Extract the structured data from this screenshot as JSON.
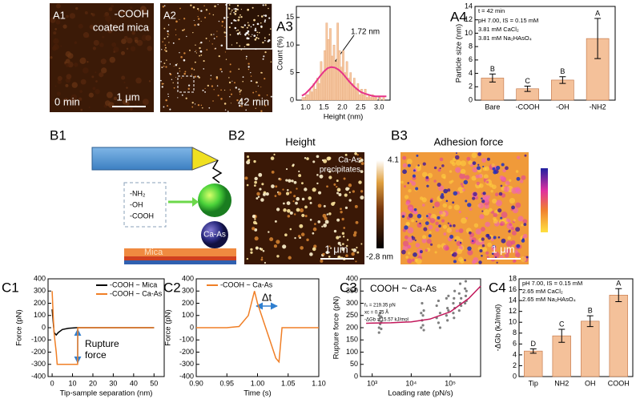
{
  "images": [
    {
      "panel": "A1",
      "texts": [
        "-COOH",
        "coated mica",
        "0 min",
        "1 μm"
      ]
    },
    {
      "panel": "A2",
      "texts": [
        "42 min"
      ]
    },
    {
      "panel": "B1",
      "texts": [
        "-NH₂",
        "-OH",
        "-COOH",
        "Ca-As",
        "Mica"
      ]
    },
    {
      "panel": "B2",
      "title": "Height",
      "texts": [
        "Ca-As",
        "precipitates",
        "1 μm"
      ],
      "colorbar": [
        "4.1 nm",
        "-2.8 nm"
      ]
    },
    {
      "panel": "B3",
      "title": "Adhesion force",
      "texts": [
        "1 μm"
      ]
    }
  ],
  "chart_data": [
    {
      "type": "histogram",
      "panel": "A3",
      "xlabel": "Height (nm)",
      "ylabel": "Count (%)",
      "color": "#f7c8a2",
      "bins": [
        0.9,
        0.95,
        1.0,
        1.05,
        1.1,
        1.15,
        1.2,
        1.25,
        1.3,
        1.35,
        1.4,
        1.45,
        1.5,
        1.55,
        1.6,
        1.65,
        1.7,
        1.75,
        1.8,
        1.85,
        1.9,
        1.95,
        2.0,
        2.05,
        2.1,
        2.15,
        2.2,
        2.25,
        2.3,
        2.35,
        2.4,
        2.45,
        2.5,
        2.55,
        2.6,
        2.65,
        2.7,
        2.75,
        2.8,
        2.85,
        2.9,
        2.95,
        3.0,
        3.05,
        3.1,
        3.15,
        3.2
      ],
      "values": [
        0.5,
        0.5,
        1,
        1,
        2,
        1.5,
        3,
        2,
        4,
        3,
        7,
        5,
        9,
        14,
        11,
        13,
        8,
        10,
        7,
        14,
        9,
        6,
        9,
        5,
        7,
        4,
        5,
        3,
        4,
        2,
        3,
        1,
        2,
        1,
        2,
        0.5,
        1,
        0.5,
        1,
        0.5,
        0.5,
        0,
        0.5,
        0,
        0.5,
        0
      ],
      "fit": {
        "color": "#e6338a",
        "x": [
          0.9,
          1.0,
          1.1,
          1.2,
          1.3,
          1.4,
          1.5,
          1.6,
          1.7,
          1.8,
          1.9,
          2.0,
          2.1,
          2.2,
          2.3,
          2.4,
          2.5,
          2.6,
          2.7,
          2.8,
          2.9,
          3.0,
          3.1,
          3.2
        ],
        "values": [
          0.8,
          1.2,
          1.9,
          2.6,
          3.5,
          4.4,
          5.2,
          5.8,
          6.0,
          5.9,
          5.5,
          4.9,
          4.1,
          3.3,
          2.6,
          2.0,
          1.5,
          1.2,
          1.0,
          0.8,
          0.7,
          0.7,
          0.7,
          0.7
        ]
      },
      "annotations": [
        "1.72 nm"
      ],
      "xlim": [
        0.75,
        3.3
      ],
      "xticks": [
        {
          "value": 1,
          "label": "1.0"
        },
        1.5,
        {
          "value": 2,
          "label": "2.0"
        },
        2.5,
        {
          "value": 3,
          "label": "3.0"
        }
      ],
      "ylim": [
        0,
        17
      ],
      "yticks": [
        0,
        5,
        10,
        15
      ]
    },
    {
      "type": "bar",
      "panel": "A4",
      "ylabel": "Particle size (nm)",
      "color": "#f4c19a",
      "categories": [
        "Bare",
        "-COOH",
        "-OH",
        "-NH2"
      ],
      "values": [
        3.3,
        1.7,
        3.0,
        9.2
      ],
      "errors": [
        0.6,
        0.4,
        0.5,
        3.0
      ],
      "group_labels": [
        "B",
        "C",
        "B",
        "A"
      ],
      "annotations": [
        "t = 42 min",
        "pH 7.00, IS = 0.15 mM",
        "3.81 mM CaCl₂",
        "3.81 mM Na₂HAsO₄"
      ],
      "ylim": [
        0,
        14
      ],
      "yticks": [
        0,
        2,
        4,
        6,
        8,
        10,
        12,
        14
      ]
    },
    {
      "type": "line",
      "panel": "C1",
      "xlabel": "Tip-sample separation (nm)",
      "ylabel": "Force (pN)",
      "series": [
        {
          "name": "-COOH ~ Mica",
          "color": "#000000",
          "x": [
            0,
            1,
            2,
            3,
            5,
            8,
            12,
            20,
            30,
            40,
            50
          ],
          "values": [
            150,
            -40,
            -60,
            -40,
            -15,
            -5,
            0,
            0,
            0,
            0,
            0
          ]
        },
        {
          "name": "-COOH ~ Ca-As",
          "color": "#f07f26",
          "x": [
            0,
            0.5,
            1,
            2,
            2.5,
            5,
            10,
            12.5,
            12.6,
            15,
            20,
            30,
            40,
            50
          ],
          "values": [
            300,
            100,
            -50,
            -200,
            -300,
            -300,
            -300,
            -300,
            0,
            0,
            0,
            0,
            0,
            0
          ]
        }
      ],
      "annotations": [
        "Rupture",
        "force"
      ],
      "xlim": [
        -2,
        55
      ],
      "xticks": [
        0,
        10,
        20,
        30,
        40,
        50
      ],
      "ylim": [
        -400,
        400
      ],
      "yticks": [
        -400,
        -300,
        -200,
        -100,
        0,
        100,
        200,
        300,
        400
      ]
    },
    {
      "type": "line",
      "panel": "C2",
      "xlabel": "Time (s)",
      "ylabel": "Force (pN)",
      "series": [
        {
          "name": "-COOH ~ Ca-As",
          "color": "#f07f26",
          "x": [
            0.9,
            0.95,
            0.97,
            0.985,
            0.995,
            1.0,
            1.01,
            1.02,
            1.03,
            1.035,
            1.04,
            1.06,
            1.1
          ],
          "values": [
            0,
            0,
            10,
            100,
            300,
            200,
            50,
            -100,
            -250,
            -280,
            0,
            0,
            0
          ]
        }
      ],
      "annotations": [
        "Δt"
      ],
      "xlim": [
        0.9,
        1.1
      ],
      "xticks": [
        {
          "value": 0.9,
          "label": "0.90"
        },
        0.95,
        {
          "value": 1,
          "label": "1.00"
        },
        1.05,
        {
          "value": 1.1,
          "label": "1.10"
        }
      ],
      "ylim": [
        -400,
        400
      ],
      "yticks": [
        -400,
        -300,
        -200,
        -100,
        0,
        100,
        200,
        300,
        400
      ]
    },
    {
      "type": "scatter",
      "panel": "C3",
      "xlabel": "Loading rate (pN/s)",
      "ylabel": "Rupture force (pN)",
      "xscale": "log",
      "legend_color": "#f07f26",
      "series": [
        {
          "name": "COOH ~ Ca-As",
          "color": "#7f7f7f",
          "x": [
            1500,
            1500,
            1500,
            1500,
            1600,
            1600,
            1600,
            1700,
            1700,
            1700,
            18000,
            18000,
            19000,
            19000,
            20000,
            20000,
            21000,
            21000,
            45000,
            45000,
            50000,
            50000,
            55000,
            55000,
            80000,
            80000,
            85000,
            85000,
            90000,
            90000,
            120000,
            120000,
            125000,
            125000,
            130000,
            130000,
            170000,
            170000,
            180000,
            180000,
            190000,
            190000,
            240000,
            240000,
            250000,
            250000,
            260000,
            260000
          ],
          "values": [
            200,
            230,
            250,
            180,
            215,
            240,
            260,
            195,
            225,
            245,
            200,
            260,
            230,
            300,
            210,
            250,
            190,
            270,
            240,
            290,
            220,
            310,
            260,
            200,
            250,
            320,
            230,
            280,
            270,
            330,
            260,
            300,
            240,
            320,
            280,
            350,
            270,
            340,
            300,
            380,
            320,
            290,
            300,
            360,
            330,
            390,
            350,
            310
          ]
        }
      ],
      "fit": {
        "color": "#c2185b",
        "x": [
          700,
          1000,
          3000,
          10000,
          30000,
          100000,
          300000,
          600000
        ],
        "values": [
          218,
          219,
          220,
          224,
          235,
          265,
          320,
          370
        ]
      },
      "annotations": [
        "f₀ = 219.35 pN",
        "xc = 0.75 Å",
        "-ΔGb = 15.57 kJ/mol"
      ],
      "xlim": [
        500,
        600000
      ],
      "xticks": [
        {
          "value": 1000,
          "label": "10³"
        },
        {
          "value": 10000,
          "label": "10⁴"
        },
        {
          "value": 100000,
          "label": "10⁵"
        }
      ],
      "ylim": [
        0,
        400
      ],
      "yticks": [
        0,
        50,
        100,
        150,
        200,
        250,
        300,
        350,
        400
      ]
    },
    {
      "type": "bar",
      "panel": "C4",
      "ylabel": "-ΔGb (kJ/mol)",
      "color": "#f4c19a",
      "categories": [
        "Tip",
        "NH2",
        "OH",
        "COOH"
      ],
      "values": [
        4.7,
        7.5,
        10.2,
        15.0
      ],
      "errors": [
        0.4,
        1.2,
        1.0,
        1.2
      ],
      "group_labels": [
        "D",
        "C",
        "B",
        "A"
      ],
      "annotations": [
        "pH 7.00, IS = 0.15 mM",
        "2.65 mM CaCl₂",
        "2.65 mM Na₂HAsO₄"
      ],
      "ylim": [
        0,
        18
      ],
      "yticks": [
        0,
        2,
        4,
        6,
        8,
        10,
        12,
        14,
        16,
        18
      ]
    }
  ]
}
